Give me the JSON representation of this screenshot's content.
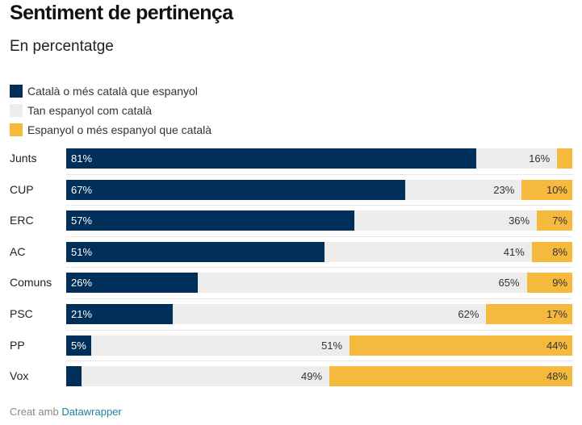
{
  "title": "Sentiment de pertinença",
  "subtitle": "En percentatge",
  "footer": {
    "prefix": "Creat amb ",
    "link": "Datawrapper"
  },
  "colors": {
    "catalan": "#002f5a",
    "equal": "#ececec",
    "spanish": "#f5ba3d",
    "label_dark_bg": "#ffffff",
    "label_light_bg": "#333333"
  },
  "chart_data": {
    "type": "bar",
    "orientation": "horizontal-stacked-100",
    "categories": [
      "Junts",
      "CUP",
      "ERC",
      "AC",
      "Comuns",
      "PSC",
      "PP",
      "Vox"
    ],
    "series": [
      {
        "name": "Català o més català que espanyol",
        "values": [
          81,
          67,
          57,
          51,
          26,
          21,
          5,
          3
        ],
        "labels": [
          "81%",
          "67%",
          "57%",
          "51%",
          "26%",
          "21%",
          "5%",
          ""
        ]
      },
      {
        "name": "Tan espanyol com català",
        "values": [
          16,
          23,
          36,
          41,
          65,
          62,
          51,
          49
        ],
        "labels": [
          "16%",
          "23%",
          "36%",
          "41%",
          "65%",
          "62%",
          "51%",
          "49%"
        ]
      },
      {
        "name": "Espanyol o més espanyol que català",
        "values": [
          3,
          10,
          7,
          8,
          9,
          17,
          44,
          48
        ],
        "labels": [
          "",
          "10%",
          "7%",
          "8%",
          "9%",
          "17%",
          "44%",
          "48%"
        ]
      }
    ],
    "xlim": [
      0,
      100
    ],
    "legend_position": "top-left"
  }
}
